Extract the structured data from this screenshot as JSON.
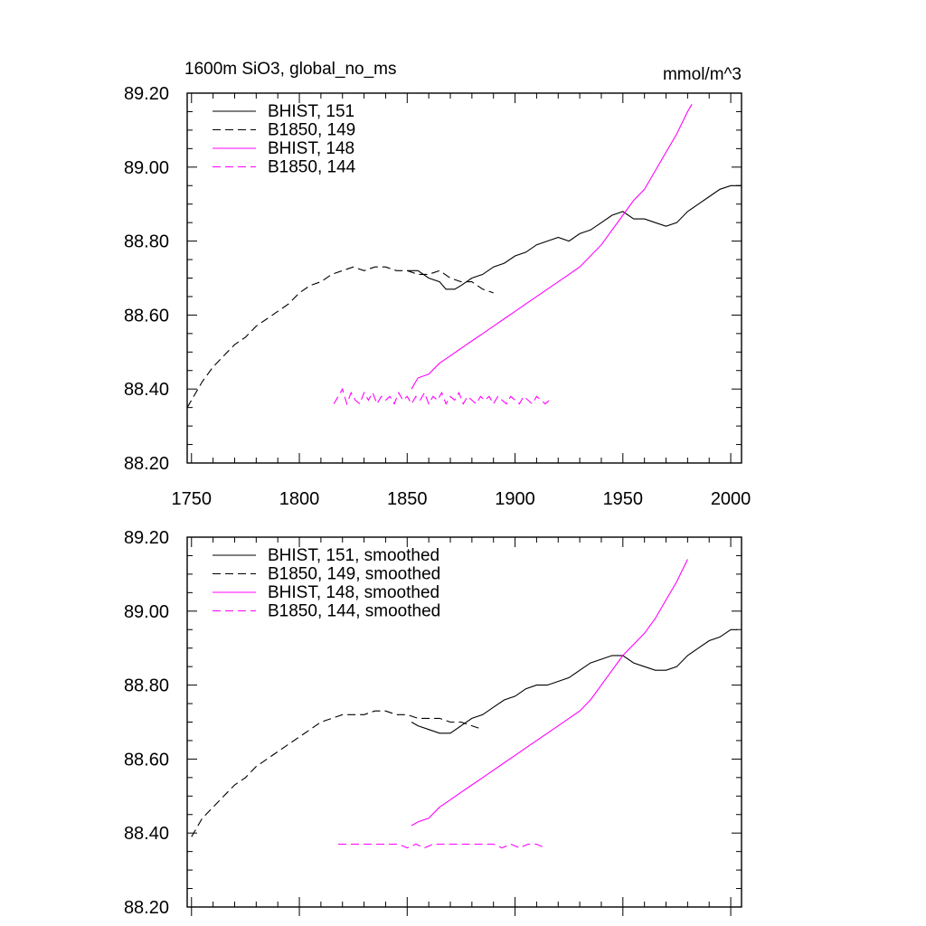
{
  "chart_data": [
    {
      "type": "line",
      "title": "1600m SiO3, global_no_ms",
      "units": "mmol/m^3",
      "xlim": [
        1748,
        2005
      ],
      "ylim": [
        88.2,
        89.2
      ],
      "xticks": [
        "1750",
        "1800",
        "1850",
        "1900",
        "1950",
        "2000"
      ],
      "yticks": [
        "88.20",
        "88.40",
        "88.60",
        "88.80",
        "89.00",
        "89.20"
      ],
      "legend_position": "top-left",
      "series": [
        {
          "name": "BHIST, 151",
          "color": "#000000",
          "dash": "solid",
          "x": [
            1850,
            1855,
            1860,
            1865,
            1868,
            1872,
            1875,
            1880,
            1885,
            1890,
            1895,
            1900,
            1905,
            1910,
            1915,
            1920,
            1925,
            1930,
            1935,
            1940,
            1945,
            1950,
            1955,
            1960,
            1965,
            1970,
            1975,
            1980,
            1985,
            1990,
            1995,
            2000,
            2005
          ],
          "y": [
            88.72,
            88.72,
            88.7,
            88.69,
            88.67,
            88.67,
            88.68,
            88.7,
            88.71,
            88.73,
            88.74,
            88.76,
            88.77,
            88.79,
            88.8,
            88.81,
            88.8,
            88.82,
            88.83,
            88.85,
            88.87,
            88.88,
            88.86,
            88.86,
            88.85,
            88.84,
            88.85,
            88.88,
            88.9,
            88.92,
            88.94,
            88.95,
            88.95
          ]
        },
        {
          "name": "B1850, 149",
          "color": "#000000",
          "dash": "dashed",
          "x": [
            1748,
            1755,
            1760,
            1765,
            1770,
            1775,
            1780,
            1785,
            1790,
            1795,
            1800,
            1805,
            1810,
            1815,
            1820,
            1825,
            1830,
            1835,
            1840,
            1845,
            1850,
            1855,
            1860,
            1865,
            1870,
            1875,
            1880,
            1885,
            1890
          ],
          "y": [
            88.35,
            88.42,
            88.46,
            88.49,
            88.52,
            88.54,
            88.57,
            88.59,
            88.61,
            88.63,
            88.66,
            88.68,
            88.69,
            88.71,
            88.72,
            88.73,
            88.72,
            88.73,
            88.73,
            88.72,
            88.72,
            88.71,
            88.71,
            88.72,
            88.7,
            88.69,
            88.69,
            88.67,
            88.66
          ]
        },
        {
          "name": "BHIST, 148",
          "color": "#ff00ff",
          "dash": "solid",
          "x": [
            1852,
            1855,
            1860,
            1865,
            1870,
            1875,
            1880,
            1885,
            1890,
            1895,
            1900,
            1905,
            1910,
            1915,
            1920,
            1925,
            1930,
            1935,
            1940,
            1945,
            1950,
            1955,
            1960,
            1965,
            1970,
            1975,
            1980,
            1982
          ],
          "y": [
            88.4,
            88.43,
            88.44,
            88.47,
            88.49,
            88.51,
            88.53,
            88.55,
            88.57,
            88.59,
            88.61,
            88.63,
            88.65,
            88.67,
            88.69,
            88.71,
            88.73,
            88.76,
            88.79,
            88.83,
            88.87,
            88.91,
            88.94,
            88.99,
            89.04,
            89.09,
            89.15,
            89.17
          ]
        },
        {
          "name": "B1850, 144",
          "color": "#ff00ff",
          "dash": "dashed",
          "x": [
            1816,
            1818,
            1820,
            1822,
            1824,
            1826,
            1828,
            1830,
            1832,
            1834,
            1836,
            1838,
            1840,
            1842,
            1844,
            1846,
            1848,
            1850,
            1852,
            1854,
            1856,
            1858,
            1860,
            1862,
            1864,
            1866,
            1868,
            1870,
            1872,
            1874,
            1876,
            1878,
            1880,
            1882,
            1884,
            1886,
            1888,
            1890,
            1892,
            1894,
            1896,
            1898,
            1900,
            1902,
            1904,
            1906,
            1908,
            1910,
            1912,
            1914,
            1916
          ],
          "y": [
            88.36,
            88.38,
            88.4,
            88.36,
            88.39,
            88.37,
            88.36,
            88.39,
            88.37,
            88.39,
            88.36,
            88.38,
            88.37,
            88.38,
            88.36,
            88.39,
            88.37,
            88.38,
            88.36,
            88.38,
            88.37,
            88.39,
            88.36,
            88.38,
            88.37,
            88.39,
            88.36,
            88.38,
            88.37,
            88.39,
            88.36,
            88.38,
            88.37,
            88.36,
            88.38,
            88.37,
            88.38,
            88.36,
            88.38,
            88.37,
            88.36,
            88.38,
            88.37,
            88.36,
            88.38,
            88.37,
            88.36,
            88.38,
            88.37,
            88.36,
            88.37
          ]
        }
      ]
    },
    {
      "type": "line",
      "title": "",
      "units": "",
      "xlim": [
        1748,
        2005
      ],
      "ylim": [
        88.2,
        89.2
      ],
      "xticks": [],
      "yticks": [
        "88.20",
        "88.40",
        "88.60",
        "88.80",
        "89.00",
        "89.20"
      ],
      "legend_position": "top-left",
      "series": [
        {
          "name": "BHIST, 151, smoothed",
          "color": "#000000",
          "dash": "solid",
          "x": [
            1852,
            1855,
            1860,
            1865,
            1870,
            1875,
            1880,
            1885,
            1890,
            1895,
            1900,
            1905,
            1910,
            1915,
            1920,
            1925,
            1930,
            1935,
            1940,
            1945,
            1950,
            1955,
            1960,
            1965,
            1970,
            1975,
            1980,
            1985,
            1990,
            1995,
            2000,
            2003
          ],
          "y": [
            88.7,
            88.69,
            88.68,
            88.67,
            88.67,
            88.69,
            88.71,
            88.72,
            88.74,
            88.76,
            88.77,
            88.79,
            88.8,
            88.8,
            88.81,
            88.82,
            88.84,
            88.86,
            88.87,
            88.88,
            88.88,
            88.86,
            88.85,
            88.84,
            88.84,
            88.85,
            88.88,
            88.9,
            88.92,
            88.93,
            88.95,
            88.95
          ]
        },
        {
          "name": "B1850, 149, smoothed",
          "color": "#000000",
          "dash": "dashed",
          "x": [
            1750,
            1755,
            1760,
            1765,
            1770,
            1775,
            1780,
            1785,
            1790,
            1795,
            1800,
            1805,
            1810,
            1815,
            1820,
            1825,
            1830,
            1835,
            1840,
            1845,
            1850,
            1855,
            1860,
            1865,
            1870,
            1875,
            1880,
            1885
          ],
          "y": [
            88.39,
            88.44,
            88.47,
            88.5,
            88.53,
            88.55,
            88.58,
            88.6,
            88.62,
            88.64,
            88.66,
            88.68,
            88.7,
            88.71,
            88.72,
            88.72,
            88.72,
            88.73,
            88.73,
            88.72,
            88.72,
            88.71,
            88.71,
            88.71,
            88.7,
            88.7,
            88.69,
            88.68
          ]
        },
        {
          "name": "BHIST, 148, smoothed",
          "color": "#ff00ff",
          "dash": "solid",
          "x": [
            1852,
            1855,
            1860,
            1865,
            1870,
            1875,
            1880,
            1885,
            1890,
            1895,
            1900,
            1905,
            1910,
            1915,
            1920,
            1925,
            1930,
            1935,
            1940,
            1945,
            1950,
            1955,
            1960,
            1965,
            1970,
            1975,
            1980
          ],
          "y": [
            88.42,
            88.43,
            88.44,
            88.47,
            88.49,
            88.51,
            88.53,
            88.55,
            88.57,
            88.59,
            88.61,
            88.63,
            88.65,
            88.67,
            88.69,
            88.71,
            88.73,
            88.76,
            88.8,
            88.84,
            88.88,
            88.91,
            88.94,
            88.98,
            89.03,
            89.08,
            89.14
          ]
        },
        {
          "name": "B1850, 144, smoothed",
          "color": "#ff00ff",
          "dash": "dashed",
          "x": [
            1818,
            1822,
            1826,
            1830,
            1834,
            1838,
            1842,
            1846,
            1850,
            1854,
            1858,
            1862,
            1866,
            1870,
            1874,
            1878,
            1882,
            1886,
            1890,
            1894,
            1898,
            1902,
            1906,
            1910,
            1914
          ],
          "y": [
            88.37,
            88.37,
            88.37,
            88.37,
            88.37,
            88.37,
            88.37,
            88.37,
            88.36,
            88.37,
            88.36,
            88.37,
            88.37,
            88.37,
            88.37,
            88.37,
            88.37,
            88.37,
            88.37,
            88.36,
            88.37,
            88.36,
            88.37,
            88.37,
            88.36
          ]
        }
      ]
    }
  ]
}
